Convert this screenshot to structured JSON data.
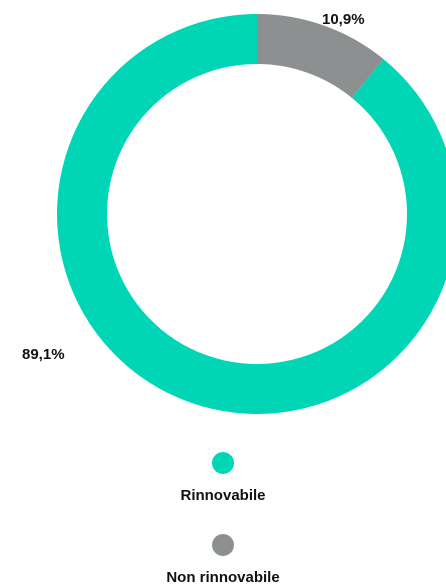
{
  "chart_data": {
    "type": "pie",
    "variant": "donut",
    "title": "",
    "slices": [
      {
        "label": "Rinnovabile",
        "value": 89.1,
        "value_label": "89,1%",
        "color": "#00D6B5"
      },
      {
        "label": "Non rinnovabile",
        "value": 10.9,
        "value_label": "10,9%",
        "color": "#8C9091"
      }
    ],
    "legend_position": "bottom"
  }
}
